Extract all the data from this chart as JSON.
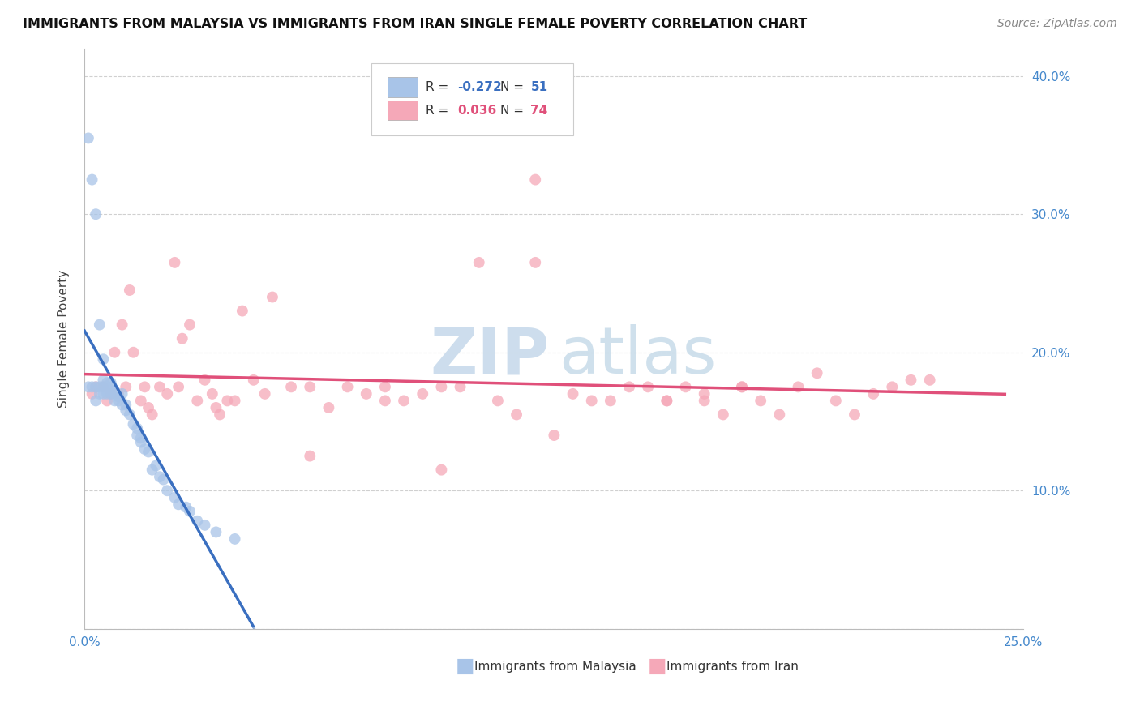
{
  "title": "IMMIGRANTS FROM MALAYSIA VS IMMIGRANTS FROM IRAN SINGLE FEMALE POVERTY CORRELATION CHART",
  "source": "Source: ZipAtlas.com",
  "ylabel": "Single Female Poverty",
  "x_min": 0.0,
  "x_max": 0.25,
  "y_min": 0.0,
  "y_max": 0.42,
  "y_ticks": [
    0.0,
    0.1,
    0.2,
    0.3,
    0.4
  ],
  "y_tick_labels_right": [
    "",
    "10.0%",
    "20.0%",
    "30.0%",
    "40.0%"
  ],
  "x_ticks": [
    0.0,
    0.05,
    0.1,
    0.15,
    0.2,
    0.25
  ],
  "x_tick_labels": [
    "0.0%",
    "",
    "",
    "",
    "",
    "25.0%"
  ],
  "malaysia_R": -0.272,
  "malaysia_N": 51,
  "iran_R": 0.036,
  "iran_N": 74,
  "malaysia_color": "#a8c4e8",
  "iran_color": "#f5a8b8",
  "malaysia_line_color": "#3a6fc0",
  "iran_line_color": "#e0507a",
  "dashed_line_color": "#a0b8d8",
  "tick_color": "#4488cc",
  "grid_color": "#d0d0d0",
  "watermark_zip_color": "#c5d8ea",
  "watermark_atlas_color": "#b0cce0",
  "malaysia_x": [
    0.001,
    0.001,
    0.002,
    0.002,
    0.003,
    0.003,
    0.003,
    0.004,
    0.004,
    0.004,
    0.005,
    0.005,
    0.005,
    0.005,
    0.006,
    0.006,
    0.006,
    0.006,
    0.007,
    0.007,
    0.007,
    0.008,
    0.008,
    0.008,
    0.009,
    0.009,
    0.01,
    0.01,
    0.011,
    0.011,
    0.012,
    0.013,
    0.014,
    0.015,
    0.016,
    0.018,
    0.02,
    0.022,
    0.025,
    0.028,
    0.032,
    0.014,
    0.015,
    0.017,
    0.019,
    0.021,
    0.024,
    0.027,
    0.03,
    0.035,
    0.04
  ],
  "malaysia_y": [
    0.355,
    0.175,
    0.325,
    0.175,
    0.3,
    0.165,
    0.175,
    0.22,
    0.175,
    0.17,
    0.195,
    0.18,
    0.175,
    0.17,
    0.175,
    0.172,
    0.178,
    0.17,
    0.175,
    0.178,
    0.17,
    0.165,
    0.172,
    0.17,
    0.165,
    0.168,
    0.162,
    0.17,
    0.158,
    0.162,
    0.155,
    0.148,
    0.14,
    0.135,
    0.13,
    0.115,
    0.11,
    0.1,
    0.09,
    0.085,
    0.075,
    0.145,
    0.138,
    0.128,
    0.118,
    0.108,
    0.095,
    0.088,
    0.078,
    0.07,
    0.065
  ],
  "iran_x": [
    0.002,
    0.003,
    0.005,
    0.006,
    0.007,
    0.008,
    0.009,
    0.01,
    0.011,
    0.012,
    0.013,
    0.015,
    0.016,
    0.017,
    0.018,
    0.02,
    0.022,
    0.024,
    0.026,
    0.028,
    0.03,
    0.032,
    0.034,
    0.036,
    0.038,
    0.04,
    0.042,
    0.045,
    0.048,
    0.05,
    0.055,
    0.06,
    0.065,
    0.07,
    0.075,
    0.08,
    0.085,
    0.09,
    0.095,
    0.1,
    0.11,
    0.115,
    0.12,
    0.125,
    0.13,
    0.14,
    0.15,
    0.155,
    0.16,
    0.165,
    0.17,
    0.175,
    0.18,
    0.185,
    0.19,
    0.195,
    0.2,
    0.205,
    0.21,
    0.215,
    0.22,
    0.225,
    0.12,
    0.135,
    0.145,
    0.155,
    0.165,
    0.175,
    0.105,
    0.06,
    0.08,
    0.095,
    0.025,
    0.035
  ],
  "iran_y": [
    0.17,
    0.175,
    0.175,
    0.165,
    0.17,
    0.2,
    0.17,
    0.22,
    0.175,
    0.245,
    0.2,
    0.165,
    0.175,
    0.16,
    0.155,
    0.175,
    0.17,
    0.265,
    0.21,
    0.22,
    0.165,
    0.18,
    0.17,
    0.155,
    0.165,
    0.165,
    0.23,
    0.18,
    0.17,
    0.24,
    0.175,
    0.175,
    0.16,
    0.175,
    0.17,
    0.165,
    0.165,
    0.17,
    0.175,
    0.175,
    0.165,
    0.155,
    0.325,
    0.14,
    0.17,
    0.165,
    0.175,
    0.165,
    0.175,
    0.165,
    0.155,
    0.175,
    0.165,
    0.155,
    0.175,
    0.185,
    0.165,
    0.155,
    0.17,
    0.175,
    0.18,
    0.18,
    0.265,
    0.165,
    0.175,
    0.165,
    0.17,
    0.175,
    0.265,
    0.125,
    0.175,
    0.115,
    0.175,
    0.16
  ]
}
